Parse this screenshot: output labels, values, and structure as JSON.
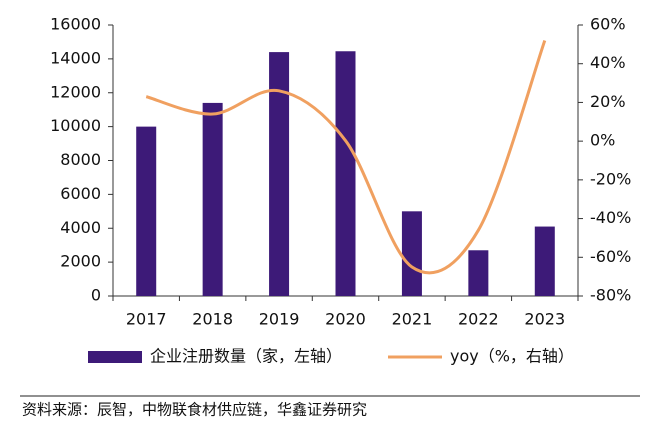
{
  "chart_data": {
    "type": "bar_line",
    "categories": [
      "2017",
      "2018",
      "2019",
      "2020",
      "2021",
      "2022",
      "2023"
    ],
    "series": [
      {
        "name": "企业注册数量（家，左轴）",
        "type": "bar",
        "color": "#3d1a78",
        "values": [
          10000,
          11400,
          14400,
          14450,
          5000,
          2700,
          4100
        ]
      },
      {
        "name": "yoy（%，右轴）",
        "type": "line",
        "axis": "y2",
        "color": "#f0a060",
        "values": [
          23,
          14,
          26,
          0.3,
          -65,
          -46,
          52
        ]
      }
    ],
    "ylim": [
      0,
      16000
    ],
    "yticks": [
      0,
      2000,
      4000,
      6000,
      8000,
      10000,
      12000,
      14000,
      16000
    ],
    "y2lim": [
      -80,
      60
    ],
    "y2ticks": [
      {
        "value": -80,
        "label": "-80%"
      },
      {
        "value": -60,
        "label": "-60%"
      },
      {
        "value": -40,
        "label": "-40%"
      },
      {
        "value": -20,
        "label": "-20%"
      },
      {
        "value": 0,
        "label": "0%"
      },
      {
        "value": 20,
        "label": "20%"
      },
      {
        "value": 40,
        "label": "40%"
      },
      {
        "value": 60,
        "label": "60%"
      }
    ],
    "legend": "bottom",
    "source": "资料来源：辰智，中物联食材供应链，华鑫证券研究"
  }
}
